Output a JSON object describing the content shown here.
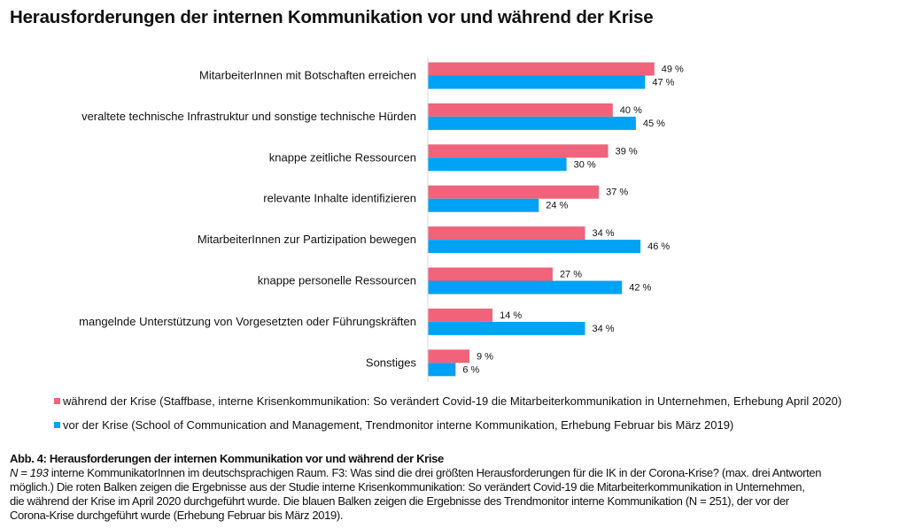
{
  "chart_data": {
    "type": "bar",
    "orientation": "horizontal",
    "title": "Herausforderungen der internen Kommunikation vor und während der Krise",
    "categories": [
      "MitarbeiterInnen mit Botschaften erreichen",
      "veraltete technische Infrastruktur und sonstige technische Hürden",
      "knappe zeitliche Ressourcen",
      "relevante Inhalte identifizieren",
      "MitarbeiterInnen zur Partizipation bewegen",
      "knappe personelle Ressourcen",
      "mangelnde Unterstützung von Vorgesetzten oder Führungskräften",
      "Sonstiges"
    ],
    "series": [
      {
        "name": "während der Krise (Staffbase, interne Krisenkommunikation: So verändert Covid-19 die Mitarbeiterkommunikation in Unternehmen, Erhebung April 2020)",
        "color": "#f0637a",
        "values": [
          49,
          40,
          39,
          37,
          34,
          27,
          14,
          9
        ]
      },
      {
        "name": "vor der Krise (School of Communication and Management, Trendmonitor interne Kommunikation, Erhebung Februar bis März 2019)",
        "color": "#00a2f5",
        "values": [
          47,
          45,
          30,
          24,
          46,
          42,
          34,
          6
        ]
      }
    ],
    "value_suffix": " %",
    "xlim": [
      0,
      100
    ],
    "grid": false,
    "legend_position": "bottom"
  },
  "caption": {
    "heading": "Abb. 4: Herausforderungen der internen Kommunikation vor und während der Krise",
    "n_label": "N = 193",
    "lines": [
      " interne KommunikatorInnen im deutschsprachigen Raum. F3: Was sind die drei größten Herausforderungen für die IK in der Corona-Krise? (max. drei Antworten",
      "möglich.) Die roten Balken zeigen die Ergebnisse aus der Studie interne Krisenkommunikation: So verändert Covid-19 die Mitarbeiterkommunikation in Unternehmen,",
      "die während der Krise im April 2020 durchgeführt wurde. Die blauen Balken zeigen die Ergebnisse des Trendmonitor interne Kommunikation (N = 251), der vor der",
      "Corona-Krise durchgeführt wurde (Erhebung Februar bis März 2019)."
    ]
  }
}
